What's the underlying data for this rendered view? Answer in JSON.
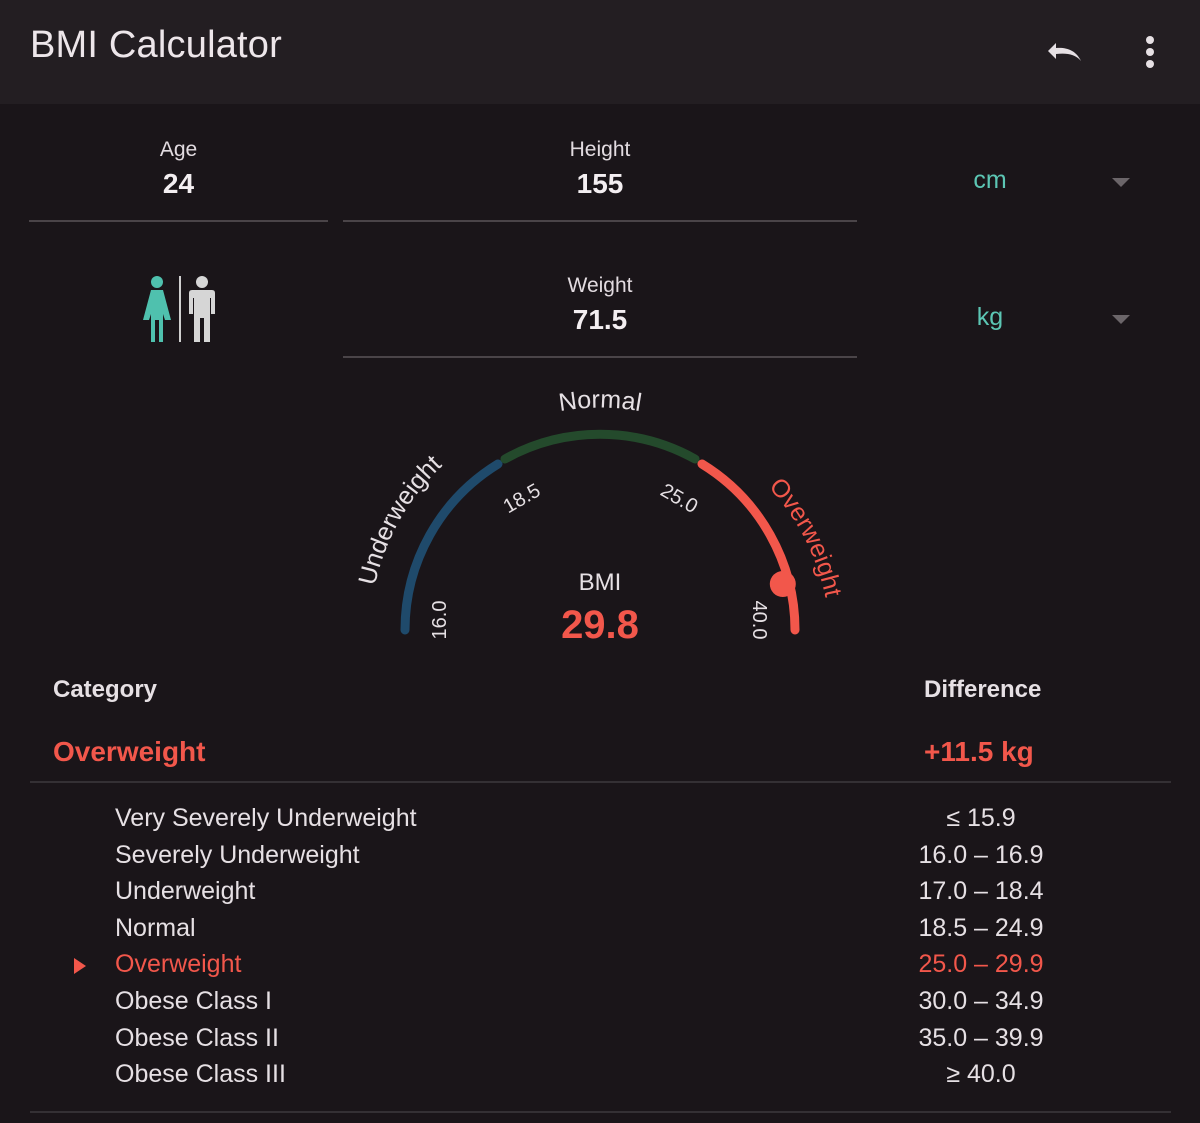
{
  "app": {
    "title": "BMI Calculator"
  },
  "toolbar": {
    "undo_icon": "undo-icon",
    "menu_icon": "more-vert-icon"
  },
  "inputs": {
    "age": {
      "label": "Age",
      "value": "24"
    },
    "height": {
      "label": "Height",
      "value": "155",
      "unit": "cm"
    },
    "weight": {
      "label": "Weight",
      "value": "71.5",
      "unit": "kg"
    }
  },
  "gender": {
    "selected": "female",
    "female_color": "#4fc1ae",
    "male_color": "#d6d6d6"
  },
  "gauge": {
    "zones": [
      {
        "name": "Underweight",
        "color": "#1f4a6b"
      },
      {
        "name": "Normal",
        "color": "#244a2c"
      },
      {
        "name": "Overweight",
        "color": "#f2574b"
      }
    ],
    "ticks": [
      "16.0",
      "18.5",
      "25.0",
      "40.0"
    ],
    "bmi_label": "BMI",
    "bmi_value": "29.8",
    "bmi_number": 29.8,
    "range": [
      16,
      40
    ],
    "accent": "#f2574b"
  },
  "table": {
    "category_header": "Category",
    "difference_header": "Difference",
    "result_category": "Overweight",
    "result_difference": "+11.5 kg",
    "rows": [
      {
        "name": "Very Severely Underweight",
        "range": "≤ 15.9",
        "active": false
      },
      {
        "name": "Severely Underweight",
        "range": "16.0 – 16.9",
        "active": false
      },
      {
        "name": "Underweight",
        "range": "17.0 – 18.4",
        "active": false
      },
      {
        "name": "Normal",
        "range": "18.5 – 24.9",
        "active": false
      },
      {
        "name": "Overweight",
        "range": "25.0 – 29.9",
        "active": true
      },
      {
        "name": "Obese Class I",
        "range": "30.0 – 34.9",
        "active": false
      },
      {
        "name": "Obese Class II",
        "range": "35.0 – 39.9",
        "active": false
      },
      {
        "name": "Obese Class III",
        "range": "≥ 40.0",
        "active": false
      }
    ]
  }
}
